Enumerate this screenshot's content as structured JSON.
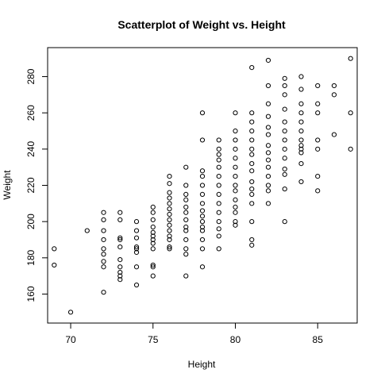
{
  "chart_data": {
    "type": "scatter",
    "title": "Scatterplot of Weight vs. Height",
    "xlabel": "Height",
    "ylabel": "Weight",
    "xlim": [
      68.6,
      87.4
    ],
    "ylim": [
      144,
      296
    ],
    "xticks": [
      70,
      75,
      80,
      85
    ],
    "yticks": [
      160,
      180,
      200,
      220,
      240,
      260,
      280
    ],
    "grid": false,
    "legend": "none",
    "marker": "open-circle",
    "marker_color": "#000000",
    "points": [
      {
        "x": 69,
        "y": 185
      },
      {
        "x": 69,
        "y": 176
      },
      {
        "x": 70,
        "y": 150
      },
      {
        "x": 71,
        "y": 195
      },
      {
        "x": 72,
        "y": 205
      },
      {
        "x": 72,
        "y": 201
      },
      {
        "x": 72,
        "y": 195
      },
      {
        "x": 72,
        "y": 190
      },
      {
        "x": 72,
        "y": 185
      },
      {
        "x": 72,
        "y": 182
      },
      {
        "x": 72,
        "y": 178
      },
      {
        "x": 72,
        "y": 175
      },
      {
        "x": 72,
        "y": 161
      },
      {
        "x": 73,
        "y": 205
      },
      {
        "x": 73,
        "y": 201
      },
      {
        "x": 73,
        "y": 191
      },
      {
        "x": 73,
        "y": 190
      },
      {
        "x": 73,
        "y": 186
      },
      {
        "x": 73,
        "y": 179
      },
      {
        "x": 73,
        "y": 175
      },
      {
        "x": 73,
        "y": 172
      },
      {
        "x": 73,
        "y": 170
      },
      {
        "x": 73,
        "y": 168
      },
      {
        "x": 74,
        "y": 200
      },
      {
        "x": 74,
        "y": 195
      },
      {
        "x": 74,
        "y": 191
      },
      {
        "x": 74,
        "y": 186
      },
      {
        "x": 74,
        "y": 185
      },
      {
        "x": 74,
        "y": 183
      },
      {
        "x": 74,
        "y": 175
      },
      {
        "x": 74,
        "y": 165
      },
      {
        "x": 75,
        "y": 208
      },
      {
        "x": 75,
        "y": 205
      },
      {
        "x": 75,
        "y": 201
      },
      {
        "x": 75,
        "y": 197
      },
      {
        "x": 75,
        "y": 194
      },
      {
        "x": 75,
        "y": 192
      },
      {
        "x": 75,
        "y": 190
      },
      {
        "x": 75,
        "y": 188
      },
      {
        "x": 75,
        "y": 185
      },
      {
        "x": 75,
        "y": 176
      },
      {
        "x": 75,
        "y": 175
      },
      {
        "x": 75,
        "y": 170
      },
      {
        "x": 76,
        "y": 225
      },
      {
        "x": 76,
        "y": 221
      },
      {
        "x": 76,
        "y": 216
      },
      {
        "x": 76,
        "y": 213
      },
      {
        "x": 76,
        "y": 210
      },
      {
        "x": 76,
        "y": 207
      },
      {
        "x": 76,
        "y": 204
      },
      {
        "x": 76,
        "y": 201
      },
      {
        "x": 76,
        "y": 198
      },
      {
        "x": 76,
        "y": 195
      },
      {
        "x": 76,
        "y": 192
      },
      {
        "x": 76,
        "y": 190
      },
      {
        "x": 76,
        "y": 186
      },
      {
        "x": 76,
        "y": 185
      },
      {
        "x": 77,
        "y": 230
      },
      {
        "x": 77,
        "y": 220
      },
      {
        "x": 77,
        "y": 215
      },
      {
        "x": 77,
        "y": 212
      },
      {
        "x": 77,
        "y": 208
      },
      {
        "x": 77,
        "y": 205
      },
      {
        "x": 77,
        "y": 201
      },
      {
        "x": 77,
        "y": 197
      },
      {
        "x": 77,
        "y": 195
      },
      {
        "x": 77,
        "y": 190
      },
      {
        "x": 77,
        "y": 185
      },
      {
        "x": 77,
        "y": 182
      },
      {
        "x": 77,
        "y": 170
      },
      {
        "x": 78,
        "y": 260
      },
      {
        "x": 78,
        "y": 245
      },
      {
        "x": 78,
        "y": 228
      },
      {
        "x": 78,
        "y": 225
      },
      {
        "x": 78,
        "y": 220
      },
      {
        "x": 78,
        "y": 215
      },
      {
        "x": 78,
        "y": 210
      },
      {
        "x": 78,
        "y": 206
      },
      {
        "x": 78,
        "y": 203
      },
      {
        "x": 78,
        "y": 200
      },
      {
        "x": 78,
        "y": 197
      },
      {
        "x": 78,
        "y": 195
      },
      {
        "x": 78,
        "y": 190
      },
      {
        "x": 78,
        "y": 185
      },
      {
        "x": 78,
        "y": 175
      },
      {
        "x": 79,
        "y": 245
      },
      {
        "x": 79,
        "y": 240
      },
      {
        "x": 79,
        "y": 237
      },
      {
        "x": 79,
        "y": 234
      },
      {
        "x": 79,
        "y": 230
      },
      {
        "x": 79,
        "y": 225
      },
      {
        "x": 79,
        "y": 220
      },
      {
        "x": 79,
        "y": 215
      },
      {
        "x": 79,
        "y": 210
      },
      {
        "x": 79,
        "y": 205
      },
      {
        "x": 79,
        "y": 200
      },
      {
        "x": 79,
        "y": 196
      },
      {
        "x": 79,
        "y": 192
      },
      {
        "x": 79,
        "y": 185
      },
      {
        "x": 80,
        "y": 260
      },
      {
        "x": 80,
        "y": 250
      },
      {
        "x": 80,
        "y": 245
      },
      {
        "x": 80,
        "y": 240
      },
      {
        "x": 80,
        "y": 235
      },
      {
        "x": 80,
        "y": 230
      },
      {
        "x": 80,
        "y": 225
      },
      {
        "x": 80,
        "y": 220
      },
      {
        "x": 80,
        "y": 217
      },
      {
        "x": 80,
        "y": 212
      },
      {
        "x": 80,
        "y": 208
      },
      {
        "x": 80,
        "y": 205
      },
      {
        "x": 80,
        "y": 200
      },
      {
        "x": 80,
        "y": 198
      },
      {
        "x": 81,
        "y": 285
      },
      {
        "x": 81,
        "y": 260
      },
      {
        "x": 81,
        "y": 255
      },
      {
        "x": 81,
        "y": 250
      },
      {
        "x": 81,
        "y": 245
      },
      {
        "x": 81,
        "y": 240
      },
      {
        "x": 81,
        "y": 237
      },
      {
        "x": 81,
        "y": 232
      },
      {
        "x": 81,
        "y": 228
      },
      {
        "x": 81,
        "y": 222
      },
      {
        "x": 81,
        "y": 218
      },
      {
        "x": 81,
        "y": 215
      },
      {
        "x": 81,
        "y": 210
      },
      {
        "x": 81,
        "y": 200
      },
      {
        "x": 81,
        "y": 190
      },
      {
        "x": 81,
        "y": 187
      },
      {
        "x": 82,
        "y": 289
      },
      {
        "x": 82,
        "y": 275
      },
      {
        "x": 82,
        "y": 265
      },
      {
        "x": 82,
        "y": 258
      },
      {
        "x": 82,
        "y": 252
      },
      {
        "x": 82,
        "y": 248
      },
      {
        "x": 82,
        "y": 242
      },
      {
        "x": 82,
        "y": 238
      },
      {
        "x": 82,
        "y": 234
      },
      {
        "x": 82,
        "y": 230
      },
      {
        "x": 82,
        "y": 225
      },
      {
        "x": 82,
        "y": 220
      },
      {
        "x": 82,
        "y": 217
      },
      {
        "x": 82,
        "y": 210
      },
      {
        "x": 83,
        "y": 279
      },
      {
        "x": 83,
        "y": 275
      },
      {
        "x": 83,
        "y": 270
      },
      {
        "x": 83,
        "y": 262
      },
      {
        "x": 83,
        "y": 255
      },
      {
        "x": 83,
        "y": 250
      },
      {
        "x": 83,
        "y": 245
      },
      {
        "x": 83,
        "y": 240
      },
      {
        "x": 83,
        "y": 235
      },
      {
        "x": 83,
        "y": 229
      },
      {
        "x": 83,
        "y": 226
      },
      {
        "x": 83,
        "y": 218
      },
      {
        "x": 83,
        "y": 200
      },
      {
        "x": 84,
        "y": 280
      },
      {
        "x": 84,
        "y": 273
      },
      {
        "x": 84,
        "y": 265
      },
      {
        "x": 84,
        "y": 260
      },
      {
        "x": 84,
        "y": 255
      },
      {
        "x": 84,
        "y": 250
      },
      {
        "x": 84,
        "y": 245
      },
      {
        "x": 84,
        "y": 242
      },
      {
        "x": 84,
        "y": 240
      },
      {
        "x": 84,
        "y": 238
      },
      {
        "x": 84,
        "y": 232
      },
      {
        "x": 84,
        "y": 222
      },
      {
        "x": 85,
        "y": 275
      },
      {
        "x": 85,
        "y": 265
      },
      {
        "x": 85,
        "y": 260
      },
      {
        "x": 85,
        "y": 245
      },
      {
        "x": 85,
        "y": 240
      },
      {
        "x": 85,
        "y": 225
      },
      {
        "x": 85,
        "y": 217
      },
      {
        "x": 86,
        "y": 275
      },
      {
        "x": 86,
        "y": 270
      },
      {
        "x": 86,
        "y": 248
      },
      {
        "x": 87,
        "y": 290
      },
      {
        "x": 87,
        "y": 260
      },
      {
        "x": 87,
        "y": 240
      }
    ]
  }
}
